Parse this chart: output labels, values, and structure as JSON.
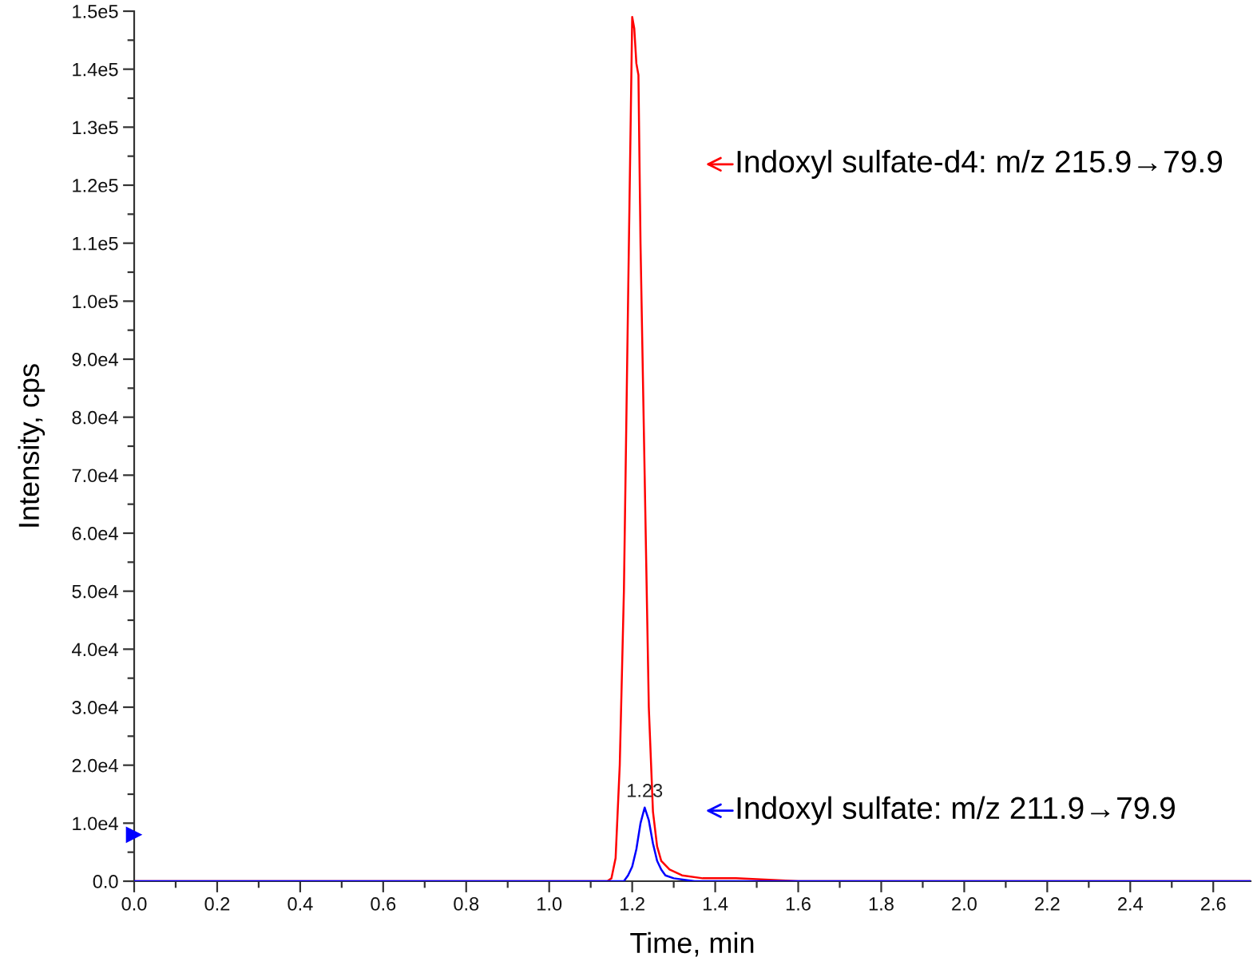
{
  "chart_data": {
    "type": "line",
    "xlabel": "Time, min",
    "ylabel": "Intensity, cps",
    "legend": "right",
    "xlim": [
      0,
      2.69
    ],
    "ylim": [
      0,
      150000
    ],
    "xticks": [
      {
        "value": 0,
        "label": "0.0"
      },
      {
        "value": 0.1,
        "label": null
      },
      0.2,
      {
        "value": 0.3,
        "label": null
      },
      0.4,
      {
        "value": 0.5,
        "label": null
      },
      0.6,
      {
        "value": 0.7,
        "label": null
      },
      0.8,
      {
        "value": 0.9,
        "label": null
      },
      {
        "value": 1,
        "label": "1.0"
      },
      {
        "value": 1.1,
        "label": null
      },
      1.2,
      {
        "value": 1.3,
        "label": null
      },
      1.4,
      {
        "value": 1.5,
        "label": null
      },
      1.6,
      {
        "value": 1.7,
        "label": null
      },
      1.8,
      {
        "value": 1.9,
        "label": null
      },
      {
        "value": 2,
        "label": "2.0"
      },
      {
        "value": 2.1,
        "label": null
      },
      2.2,
      {
        "value": 2.3,
        "label": null
      },
      2.4,
      {
        "value": 2.5,
        "label": null
      },
      2.6
    ],
    "yticks": [
      {
        "value": 0,
        "label": "0.0"
      },
      {
        "value": 5000,
        "label": null
      },
      {
        "value": 10000,
        "label": "1.0e4"
      },
      {
        "value": 15000,
        "label": null
      },
      {
        "value": 20000,
        "label": "2.0e4"
      },
      {
        "value": 25000,
        "label": null
      },
      {
        "value": 30000,
        "label": "3.0e4"
      },
      {
        "value": 35000,
        "label": null
      },
      {
        "value": 40000,
        "label": "4.0e4"
      },
      {
        "value": 45000,
        "label": null
      },
      {
        "value": 50000,
        "label": "5.0e4"
      },
      {
        "value": 55000,
        "label": null
      },
      {
        "value": 60000,
        "label": "6.0e4"
      },
      {
        "value": 65000,
        "label": null
      },
      {
        "value": 70000,
        "label": "7.0e4"
      },
      {
        "value": 75000,
        "label": null
      },
      {
        "value": 80000,
        "label": "8.0e4"
      },
      {
        "value": 85000,
        "label": null
      },
      {
        "value": 90000,
        "label": "9.0e4"
      },
      {
        "value": 95000,
        "label": null
      },
      {
        "value": 100000,
        "label": "1.0e5"
      },
      {
        "value": 105000,
        "label": null
      },
      {
        "value": 110000,
        "label": "1.1e5"
      },
      {
        "value": 115000,
        "label": null
      },
      {
        "value": 120000,
        "label": "1.2e5"
      },
      {
        "value": 125000,
        "label": null
      },
      {
        "value": 130000,
        "label": "1.3e5"
      },
      {
        "value": 135000,
        "label": null
      },
      {
        "value": 140000,
        "label": "1.4e5"
      },
      {
        "value": 145000,
        "label": null
      },
      {
        "value": 150000,
        "label": "1.5e5"
      }
    ],
    "series": [
      {
        "name": "Indoxyl sulfate-d4: m/z 215.9→79.9",
        "color": "#ff0000",
        "x": [
          0,
          1.14,
          1.15,
          1.16,
          1.17,
          1.18,
          1.19,
          1.2,
          1.205,
          1.21,
          1.215,
          1.22,
          1.23,
          1.24,
          1.25,
          1.26,
          1.27,
          1.29,
          1.32,
          1.37,
          1.45,
          1.6,
          2.0,
          2.69
        ],
        "values": [
          0,
          0,
          500,
          4000,
          20000,
          50000,
          100000,
          149000,
          147000,
          141000,
          139000,
          110000,
          70000,
          30000,
          12000,
          6000,
          3500,
          2000,
          1000,
          500,
          500,
          0,
          0,
          0
        ]
      },
      {
        "name": "Indoxyl sulfate: m/z 211.9→79.9",
        "color": "#0000ff",
        "x": [
          0,
          1.17,
          1.18,
          1.19,
          1.2,
          1.21,
          1.22,
          1.23,
          1.24,
          1.25,
          1.26,
          1.27,
          1.28,
          1.3,
          1.35,
          1.45,
          1.6,
          2.69
        ],
        "values": [
          0,
          0,
          0,
          1000,
          2500,
          5500,
          10000,
          12700,
          10500,
          6500,
          3500,
          2000,
          1000,
          500,
          0,
          0,
          0,
          0
        ]
      },
      {
        "type": "scatter",
        "color": "#0000ff",
        "marker": "triangle",
        "x": [
          0
        ],
        "values": [
          8000
        ]
      }
    ],
    "annotations": [
      {
        "text": "1.23",
        "x": 1.23,
        "y": 12700
      }
    ]
  }
}
